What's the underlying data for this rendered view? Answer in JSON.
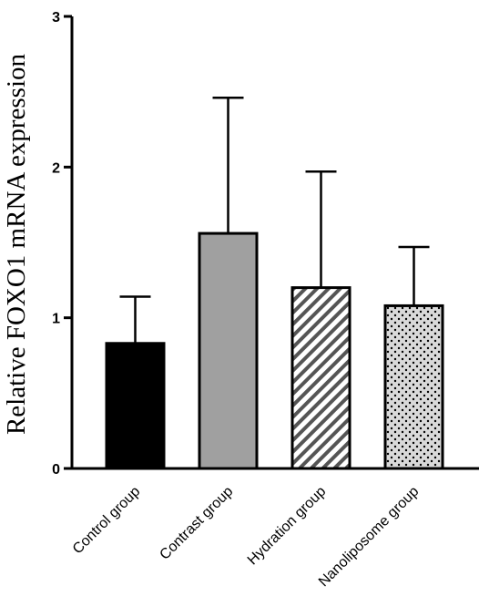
{
  "chart_data": {
    "type": "bar",
    "categories": [
      "Control group",
      "Contrast group",
      "Hydration group",
      "Nanoliposome group"
    ],
    "values": [
      0.83,
      1.56,
      1.2,
      1.08
    ],
    "error_upper": [
      1.14,
      2.46,
      1.97,
      1.47
    ],
    "ylabel": "Relative FOXO1 mRNA expression",
    "xlabel": "",
    "ylim": [
      0,
      3
    ],
    "yticks": [
      0,
      1,
      2,
      3
    ],
    "grid": false,
    "legend": "none",
    "bar_styles": [
      {
        "fill": "#000000",
        "pattern": "solid"
      },
      {
        "fill": "#a0a0a0",
        "pattern": "solid"
      },
      {
        "fill": "#ffffff",
        "pattern": "diagonal-stripes"
      },
      {
        "fill": "#d9d9d9",
        "pattern": "dots"
      }
    ]
  }
}
